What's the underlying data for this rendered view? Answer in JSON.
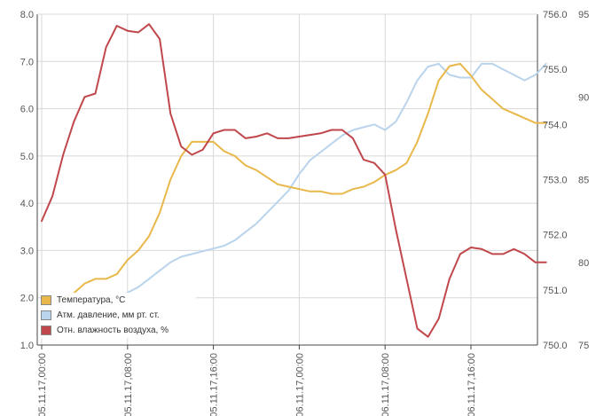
{
  "colors": {
    "temperature": "#e8b84a",
    "pressure": "#b9d4ec",
    "humidity": "#c0474b",
    "grid": "#d8d8d8",
    "axis": "#444444"
  },
  "chart_data": {
    "type": "line",
    "grid": true,
    "legend_position": "bottom-left",
    "x_range": [
      "05.11.17,00:00",
      "06.11.17,23:00"
    ],
    "x_ticks": [
      "05.11.17,00:00",
      "05.11.17,08:00",
      "05.11.17,16:00",
      "06.11.17,00:00",
      "06.11.17,08:00",
      "06.11.17,16:00"
    ],
    "y_axes": {
      "left": {
        "min": 1.0,
        "max": 8.0,
        "ticks": [
          "1.0",
          "2.0",
          "3.0",
          "4.0",
          "5.0",
          "6.0",
          "7.0",
          "8.0"
        ]
      },
      "right1": {
        "min": 750.0,
        "max": 756.0,
        "ticks": [
          "750.0",
          "751.0",
          "752.0",
          "753.0",
          "754.0",
          "755.0",
          "756.0"
        ]
      },
      "right2": {
        "min": 75,
        "max": 95,
        "ticks": [
          "75",
          "80",
          "85",
          "90",
          "95"
        ]
      }
    },
    "series": [
      {
        "name": "Температура, °C",
        "axis": "left",
        "x_hours": [
          0,
          1,
          2,
          3,
          4,
          5,
          6,
          7,
          8,
          9,
          10,
          11,
          12,
          13,
          14,
          15,
          16,
          17,
          18,
          19,
          20,
          21,
          22,
          23,
          24,
          25,
          26,
          27,
          28,
          29,
          30,
          31,
          32,
          33,
          34,
          35,
          36,
          37,
          38,
          39,
          40,
          41,
          42,
          43,
          44,
          45,
          46,
          47
        ],
        "values": [
          1.9,
          1.9,
          2.0,
          2.1,
          2.3,
          2.4,
          2.4,
          2.5,
          2.8,
          3.0,
          3.3,
          3.8,
          4.5,
          5.0,
          5.3,
          5.3,
          5.3,
          5.1,
          5.0,
          4.8,
          4.7,
          4.55,
          4.4,
          4.35,
          4.3,
          4.25,
          4.25,
          4.2,
          4.2,
          4.3,
          4.35,
          4.45,
          4.6,
          4.7,
          4.85,
          5.3,
          5.9,
          6.6,
          6.9,
          6.95,
          6.7,
          6.4,
          6.2,
          6.0,
          5.9,
          5.8,
          5.7,
          5.7
        ]
      },
      {
        "name": "Атм. давление, мм рт. ст.",
        "axis": "right1",
        "x_hours": [
          0,
          1,
          2,
          3,
          4,
          5,
          6,
          7,
          8,
          9,
          10,
          11,
          12,
          13,
          14,
          15,
          16,
          17,
          18,
          19,
          20,
          21,
          22,
          23,
          24,
          25,
          26,
          27,
          28,
          29,
          30,
          31,
          32,
          33,
          34,
          35,
          36,
          37,
          38,
          39,
          40,
          41,
          42,
          43,
          44,
          45,
          46,
          47
        ],
        "values": [
          750.2,
          750.3,
          750.4,
          750.5,
          750.6,
          750.65,
          750.7,
          750.8,
          750.95,
          751.05,
          751.2,
          751.35,
          751.5,
          751.6,
          751.65,
          751.7,
          751.75,
          751.8,
          751.9,
          752.05,
          752.2,
          752.4,
          752.6,
          752.8,
          753.1,
          753.35,
          753.5,
          753.65,
          753.8,
          753.9,
          753.95,
          754.0,
          753.9,
          754.05,
          754.4,
          754.8,
          755.05,
          755.1,
          754.9,
          754.85,
          754.85,
          755.1,
          755.1,
          755.0,
          754.9,
          754.8,
          754.9,
          755.1
        ]
      },
      {
        "name": "Отн. влажность воздуха, %",
        "axis": "right2",
        "x_hours": [
          0,
          1,
          2,
          3,
          4,
          5,
          6,
          7,
          8,
          9,
          10,
          11,
          12,
          13,
          14,
          15,
          16,
          17,
          18,
          19,
          20,
          21,
          22,
          23,
          24,
          25,
          26,
          27,
          28,
          29,
          30,
          31,
          32,
          33,
          34,
          35,
          36,
          37,
          38,
          39,
          40,
          41,
          42,
          43,
          44,
          45,
          46,
          47
        ],
        "values": [
          82.5,
          84.0,
          86.5,
          88.5,
          90.0,
          90.2,
          93.0,
          94.3,
          94.0,
          93.9,
          94.4,
          93.5,
          89.0,
          87.0,
          86.5,
          86.8,
          87.8,
          88.0,
          88.0,
          87.5,
          87.6,
          87.8,
          87.5,
          87.5,
          87.6,
          87.7,
          87.8,
          88.0,
          88.0,
          87.5,
          86.2,
          86.0,
          85.3,
          82.0,
          79.0,
          76.0,
          75.5,
          76.6,
          79.0,
          80.5,
          80.9,
          80.8,
          80.5,
          80.5,
          80.8,
          80.5,
          80.0,
          80.0
        ]
      }
    ]
  }
}
